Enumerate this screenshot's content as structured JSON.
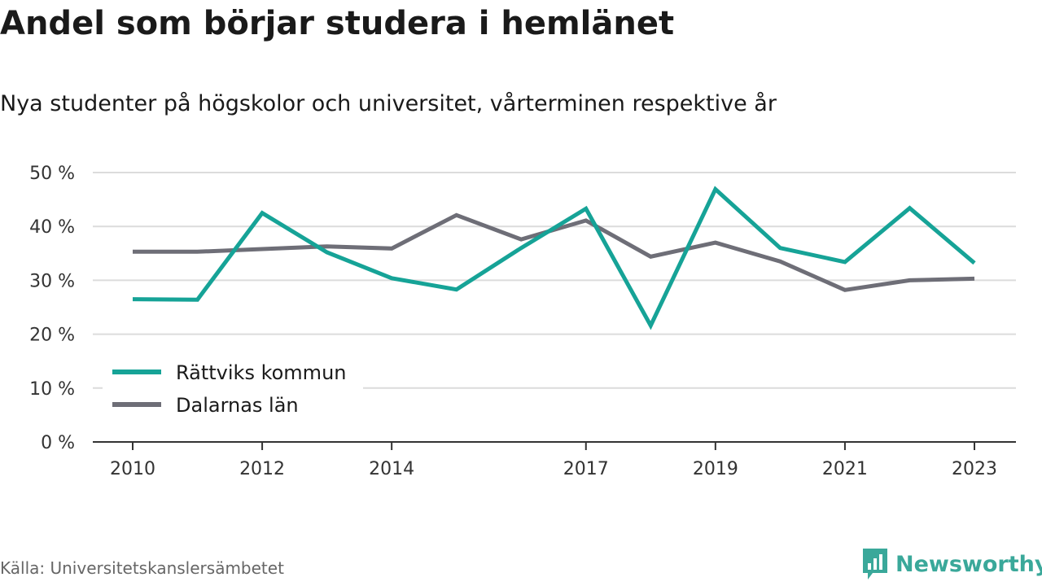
{
  "header": {
    "title": "Andel som börjar studera i hemlänet",
    "subtitle": "Nya studenter på högskolor och universitet, vårterminen respektive år"
  },
  "footer": {
    "source": "Källa: Universitetskanslersämbetet",
    "brand": "Newsworthy",
    "brand_icon": "bar-chart-speech-bubble-icon"
  },
  "chart_data": {
    "type": "line",
    "title": "Andel som börjar studera i hemlänet",
    "subtitle": "Nya studenter på högskolor och universitet, vårterminen respektive år",
    "xlabel": "",
    "ylabel": "",
    "x": [
      2010,
      2011,
      2012,
      2013,
      2014,
      2015,
      2016,
      2017,
      2018,
      2019,
      2020,
      2021,
      2022,
      2023
    ],
    "x_tick_labels": [
      "2010",
      "2012",
      "2014",
      "2017",
      "2019",
      "2021",
      "2023"
    ],
    "ylim": [
      0,
      50
    ],
    "y_ticks": [
      0,
      10,
      20,
      30,
      40,
      50
    ],
    "y_tick_labels": [
      "0 %",
      "10 %",
      "20 %",
      "30 %",
      "40 %",
      "50 %"
    ],
    "grid": true,
    "legend_position": "bottom-left",
    "series": [
      {
        "name": "Rättviks kommun",
        "color": "#16a397",
        "values": [
          26.5,
          26.4,
          42.5,
          35.2,
          30.4,
          28.3,
          36.0,
          43.3,
          21.6,
          46.9,
          36.0,
          33.4,
          43.4,
          33.2
        ]
      },
      {
        "name": "Dalarnas län",
        "color": "#6e6e77",
        "values": [
          35.3,
          35.3,
          35.8,
          36.3,
          35.9,
          42.1,
          37.6,
          41.1,
          34.4,
          37.0,
          33.5,
          28.2,
          30.0,
          30.3
        ]
      }
    ]
  }
}
